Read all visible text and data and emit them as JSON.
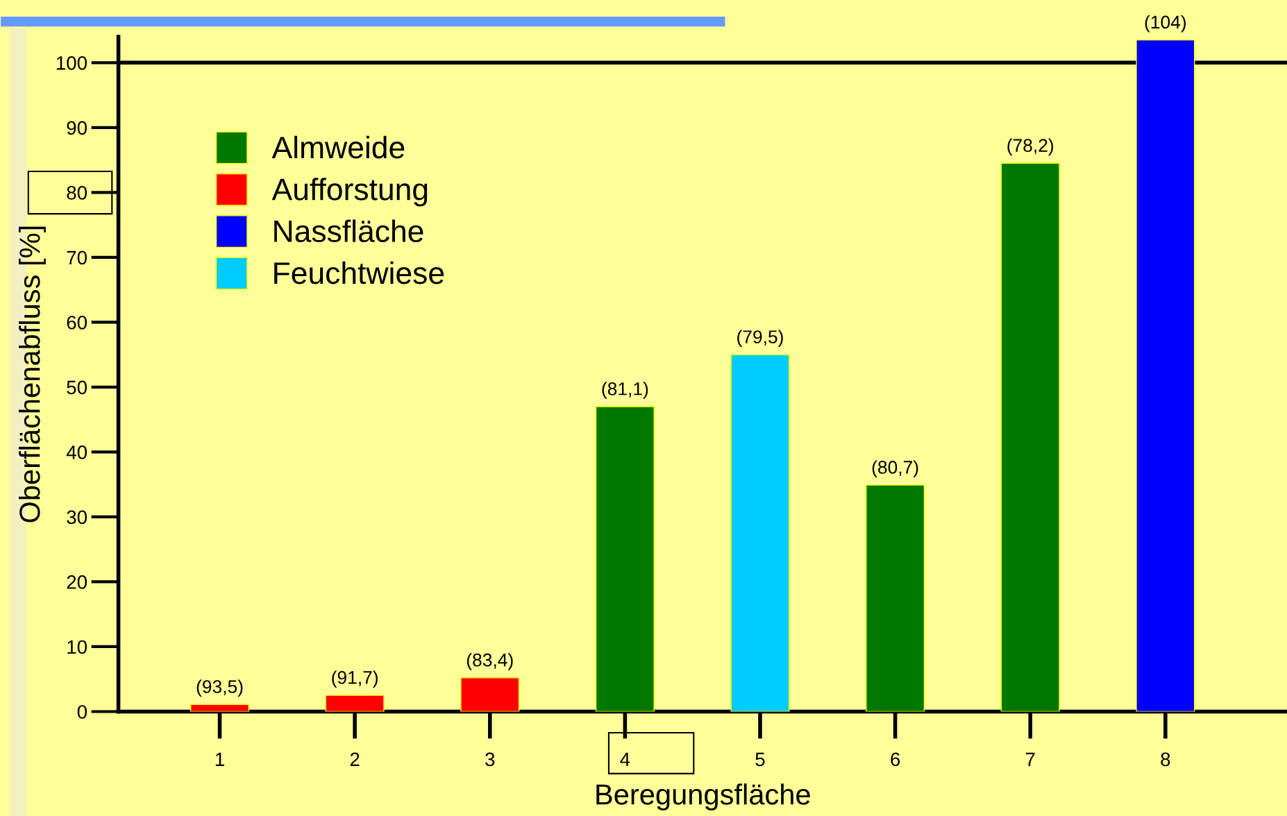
{
  "chart_data": {
    "type": "bar",
    "xlabel": "Beregungsfläche",
    "ylabel": "Oberflächenabfluss [%]",
    "categories": [
      "1",
      "2",
      "3",
      "4",
      "5",
      "6",
      "7",
      "8"
    ],
    "series": [
      {
        "name": "Almweide",
        "color": "#007800",
        "values": [
          null,
          null,
          null,
          47.0,
          null,
          34.9,
          84.5,
          null
        ]
      },
      {
        "name": "Aufforstung",
        "color": "#ff0000",
        "values": [
          1.1,
          2.5,
          5.2,
          null,
          null,
          null,
          null,
          null
        ]
      },
      {
        "name": "Nassfläche",
        "color": "#0000ff",
        "values": [
          null,
          null,
          null,
          null,
          null,
          null,
          null,
          103.5
        ]
      },
      {
        "name": "Feuchtwiese",
        "color": "#00ccff",
        "values": [
          null,
          null,
          null,
          null,
          55.0,
          null,
          null,
          null
        ]
      }
    ],
    "annotations": [
      {
        "text": "(93,5)",
        "x": "1",
        "y": 1.1
      },
      {
        "text": "(91,7)",
        "x": "2",
        "y": 2.5
      },
      {
        "text": "(83,4)",
        "x": "3",
        "y": 5.2
      },
      {
        "text": "(81,1)",
        "x": "4",
        "y": 47.0
      },
      {
        "text": "(79,5)",
        "x": "5",
        "y": 55.0
      },
      {
        "text": "(80,7)",
        "x": "6",
        "y": 34.9
      },
      {
        "text": "(78,2)",
        "x": "7",
        "y": 84.5
      },
      {
        "text": "(104)",
        "x": "8",
        "y": 103.5
      }
    ],
    "ref_lines": [
      {
        "axis": "y",
        "value": 100,
        "color": "#000000"
      }
    ],
    "ylim": [
      0,
      104
    ],
    "yticks": [
      0,
      10,
      20,
      30,
      40,
      50,
      60,
      70,
      80,
      90,
      100
    ],
    "grid": false,
    "legend": "top left"
  }
}
